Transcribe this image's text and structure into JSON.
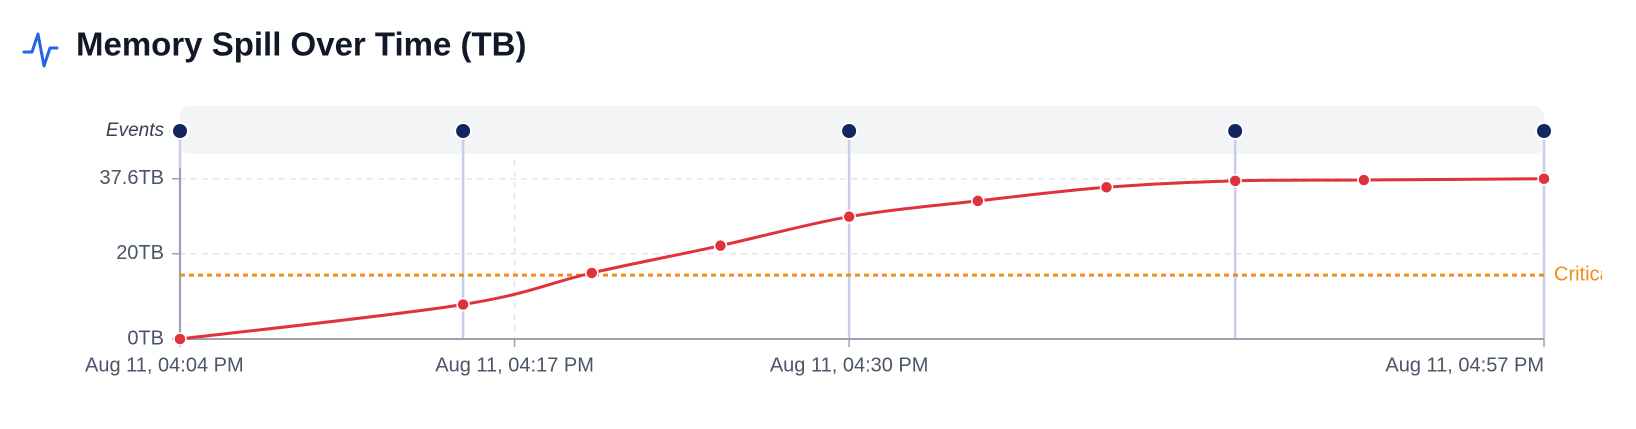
{
  "chart_data": {
    "type": "line",
    "title": "Memory Spill Over Time (TB)",
    "x": [
      "Aug 11, 04:04 PM",
      "Aug 11, 04:15 PM",
      "Aug 11, 04:20 PM",
      "Aug 11, 04:25 PM",
      "Aug 11, 04:30 PM",
      "Aug 11, 04:35 PM",
      "Aug 11, 04:40 PM",
      "Aug 11, 04:45 PM",
      "Aug 11, 04:50 PM",
      "Aug 11, 04:57 PM"
    ],
    "series": [
      {
        "color": "#e0323c",
        "values": [
          0,
          8.1,
          15.5,
          21.9,
          28.7,
          32.4,
          35.6,
          37.1,
          37.3,
          37.6
        ]
      }
    ],
    "xlim": [
      "Aug 11, 04:04 PM",
      "Aug 11, 04:57 PM"
    ],
    "xticks": [
      "Aug 11, 04:04 PM",
      "Aug 11, 04:17 PM",
      "Aug 11, 04:30 PM",
      "Aug 11, 04:57 PM"
    ],
    "ylim": [
      0,
      42
    ],
    "yticks": [
      {
        "value": 0,
        "label": "0TB"
      },
      {
        "value": 20,
        "label": "20TB"
      },
      {
        "value": 37.6,
        "label": "37.6TB"
      }
    ],
    "grid": true,
    "threshold": {
      "label": "Critical",
      "value": 15,
      "color": "#f28c18"
    },
    "events": {
      "label": "Events",
      "x": [
        "Aug 11, 04:04 PM",
        "Aug 11, 04:15 PM",
        "Aug 11, 04:30 PM",
        "Aug 11, 04:45 PM",
        "Aug 11, 04:57 PM"
      ],
      "color": "#12275e"
    }
  }
}
